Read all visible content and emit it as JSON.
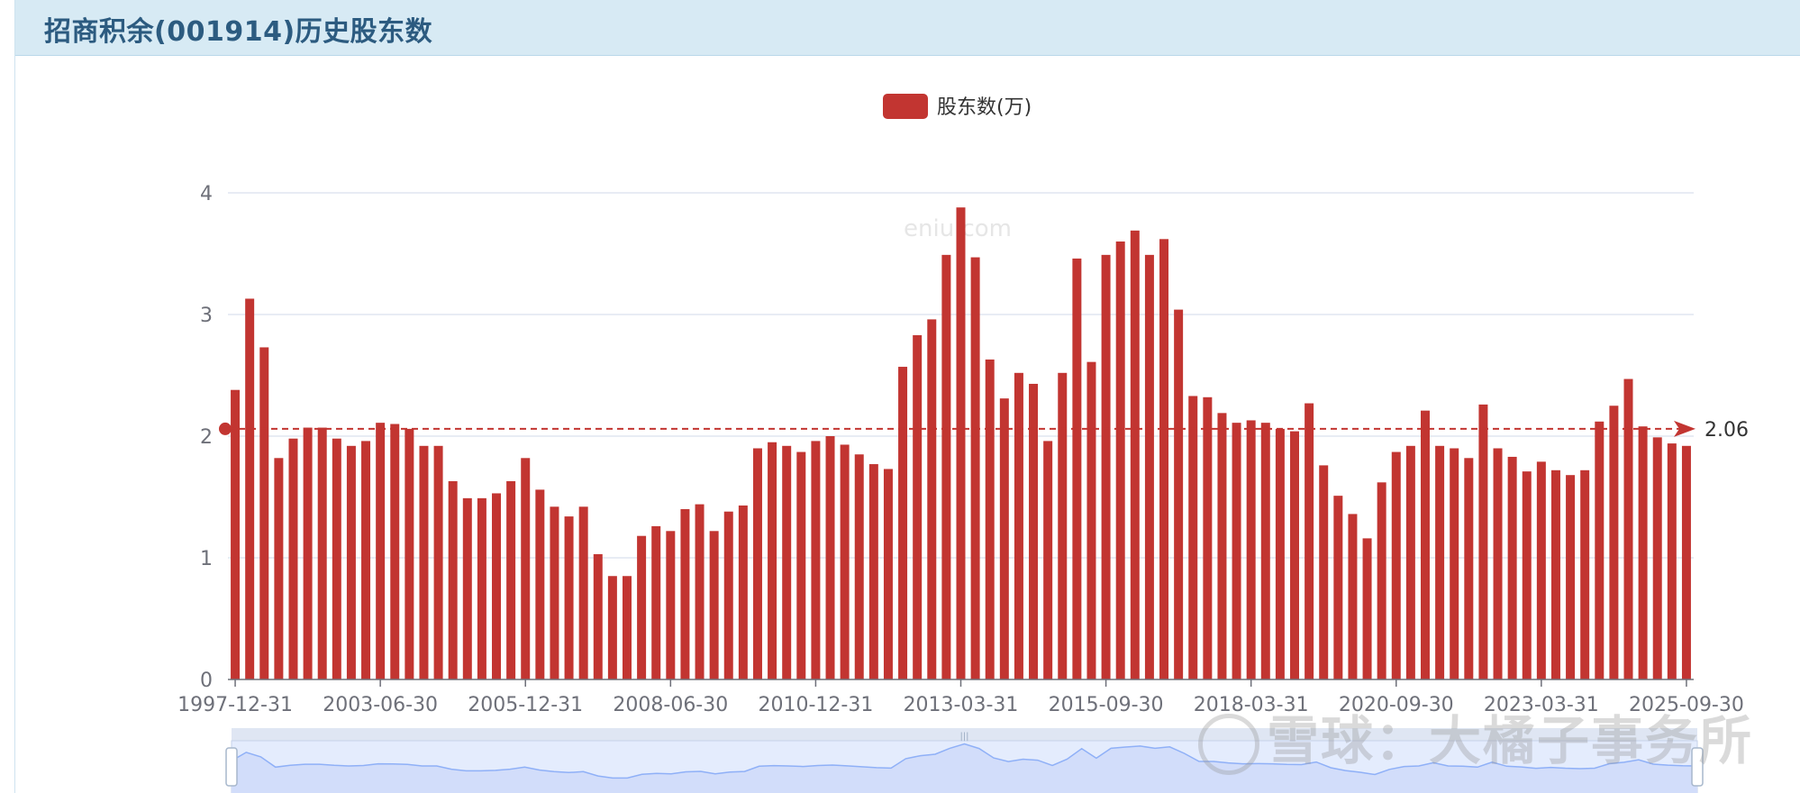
{
  "page": {
    "title": "招商积余(001914)历史股东数",
    "watermark_site": "eniu.com",
    "watermark_footer": "雪球：大橘子事务所"
  },
  "colors": {
    "bar": "#c23531",
    "header_bg": "#d7eaf4",
    "title": "#2c5b80",
    "grid": "#e0e6f1",
    "axis_text": "#6e7079",
    "slider_fill": "#e4ecfd",
    "slider_line": "#8fb0f7"
  },
  "chart_data": {
    "type": "bar",
    "legend": [
      "股东数(万)"
    ],
    "legend_position": "top-center",
    "grid": true,
    "ylim": [
      0,
      4
    ],
    "yticks": [
      "0",
      "1",
      "2",
      "3",
      "4"
    ],
    "xtick_labels": [
      "1997-12-31",
      "2003-06-30",
      "2005-12-31",
      "2008-06-30",
      "2010-12-31",
      "2013-03-31",
      "2015-09-30",
      "2018-03-31",
      "2020-09-30",
      "2023-03-31",
      "2025-09-30"
    ],
    "series": [
      {
        "name": "股东数(万)",
        "values": [
          2.38,
          3.13,
          2.73,
          1.82,
          1.98,
          2.07,
          2.07,
          1.98,
          1.92,
          1.96,
          2.11,
          2.1,
          2.06,
          1.92,
          1.92,
          1.63,
          1.49,
          1.49,
          1.53,
          1.63,
          1.82,
          1.56,
          1.42,
          1.34,
          1.42,
          1.03,
          0.85,
          0.85,
          1.18,
          1.26,
          1.22,
          1.4,
          1.44,
          1.22,
          1.38,
          1.43,
          1.9,
          1.95,
          1.92,
          1.87,
          1.96,
          2.0,
          1.93,
          1.85,
          1.77,
          1.73,
          2.57,
          2.83,
          2.96,
          3.49,
          3.88,
          3.47,
          2.63,
          2.31,
          2.52,
          2.43,
          1.96,
          2.52,
          3.46,
          2.61,
          3.49,
          3.6,
          3.69,
          3.49,
          3.62,
          3.04,
          2.33,
          2.32,
          2.19,
          2.11,
          2.13,
          2.11,
          2.06,
          2.04,
          2.27,
          1.76,
          1.51,
          1.36,
          1.16,
          1.62,
          1.87,
          1.92,
          2.21,
          1.92,
          1.9,
          1.82,
          2.26,
          1.9,
          1.83,
          1.71,
          1.79,
          1.72,
          1.68,
          1.72,
          2.12,
          2.25,
          2.47,
          2.08,
          1.99,
          1.94,
          1.92
        ]
      }
    ],
    "markline": {
      "type": "average",
      "value": 2.06,
      "label": "2.06"
    },
    "datazoom": {
      "start": 0,
      "end": 1
    }
  }
}
